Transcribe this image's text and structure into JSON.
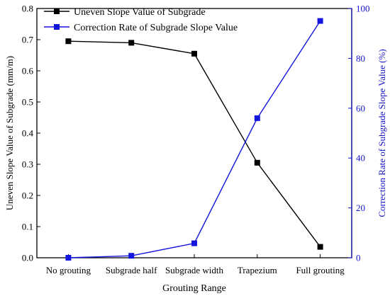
{
  "chart_data": {
    "type": "line",
    "title": "",
    "xlabel": "Grouting Range",
    "categories": [
      "No grouting",
      "Subgrade half",
      "Subgrade width",
      "Trapezium",
      "Full grouting"
    ],
    "y_left": {
      "label": "Uneven Slope Value of Subgrade (mm/m)",
      "range": [
        0.0,
        0.8
      ],
      "ticks": [
        "0.0",
        "0.1",
        "0.2",
        "0.3",
        "0.4",
        "0.5",
        "0.6",
        "0.7",
        "0.8"
      ],
      "color": "#000000"
    },
    "y_right": {
      "label": "Correction Rate of Subgrade Slope Value (%)",
      "range": [
        0,
        100
      ],
      "ticks": [
        "0",
        "20",
        "40",
        "60",
        "80",
        "100"
      ],
      "color": "#1515c8"
    },
    "series": [
      {
        "name": "Uneven Slope Value of Subgrade",
        "axis": "left",
        "color": "#000000",
        "values": [
          0.695,
          0.69,
          0.655,
          0.305,
          0.035
        ]
      },
      {
        "name": "Correction Rate of Subgrade Slope Value",
        "axis": "right",
        "color": "#1515e0",
        "values": [
          0,
          0.8,
          5.8,
          56,
          95
        ]
      }
    ],
    "legend_position": "top-left",
    "grid": false
  }
}
